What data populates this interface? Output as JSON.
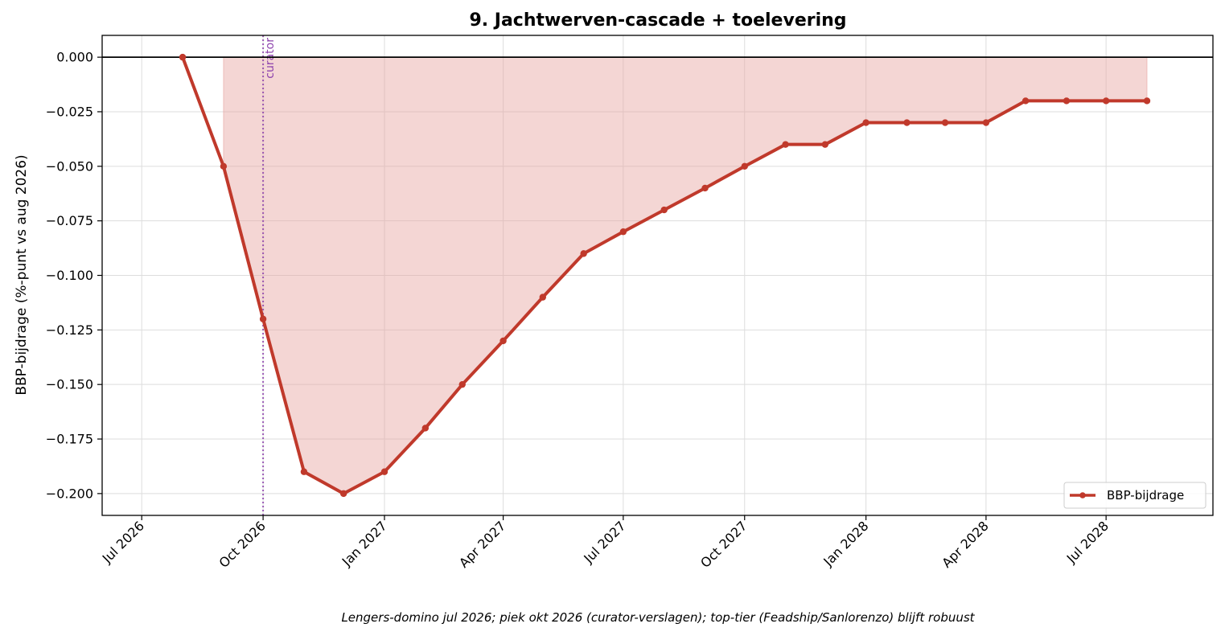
{
  "chart_data": {
    "type": "line",
    "title": "9. Jachtwerven-cascade + toelevering",
    "xlabel": "",
    "ylabel": "BBP-bijdrage (%-punt vs aug 2026)",
    "caption": "Lengers-domino jul 2026; piek okt 2026 (curator-verslagen); top-tier (Feadship/Sanlorenzo) blijft robuust",
    "x_tick_labels": [
      "Jul 2026",
      "Oct 2026",
      "Jan 2027",
      "Apr 2027",
      "Jul 2027",
      "Oct 2027",
      "Jan 2028",
      "Apr 2028",
      "Jul 2028"
    ],
    "x_ticks": [
      "2026-07-01",
      "2026-10-01",
      "2027-01-01",
      "2027-04-01",
      "2027-07-01",
      "2027-10-01",
      "2028-01-01",
      "2028-04-01",
      "2028-07-01"
    ],
    "xlim": [
      "2026-06-01",
      "2028-09-20"
    ],
    "y_ticks": [
      0.0,
      -0.025,
      -0.05,
      -0.075,
      -0.1,
      -0.125,
      -0.15,
      -0.175,
      -0.2
    ],
    "y_tick_labels": [
      "0.000",
      "−0.025",
      "−0.050",
      "−0.075",
      "−0.100",
      "−0.125",
      "−0.150",
      "−0.175",
      "−0.200"
    ],
    "ylim": [
      -0.21,
      0.01
    ],
    "grid": true,
    "legend_position": "lower-right",
    "zero_line": true,
    "series": [
      {
        "name": "BBP-bijdrage",
        "color": "#c0392b",
        "fill_color": "#e6a3a0",
        "x": [
          "2026-08-01",
          "2026-09-01",
          "2026-10-01",
          "2026-11-01",
          "2026-12-01",
          "2027-01-01",
          "2027-02-01",
          "2027-03-01",
          "2027-04-01",
          "2027-05-01",
          "2027-06-01",
          "2027-07-01",
          "2027-08-01",
          "2027-09-01",
          "2027-10-01",
          "2027-11-01",
          "2027-12-01",
          "2028-01-01",
          "2028-02-01",
          "2028-03-01",
          "2028-04-01",
          "2028-05-01",
          "2028-06-01",
          "2028-07-01",
          "2028-08-01"
        ],
        "values": [
          0.0,
          -0.05,
          -0.12,
          -0.19,
          -0.2,
          -0.19,
          -0.17,
          -0.15,
          -0.13,
          -0.11,
          -0.09,
          -0.08,
          -0.07,
          -0.06,
          -0.05,
          -0.04,
          -0.04,
          -0.03,
          -0.03,
          -0.03,
          -0.03,
          -0.02,
          -0.02,
          -0.02,
          -0.02
        ]
      }
    ],
    "annotations": [
      {
        "x": "2026-10-01",
        "label": "curator",
        "color": "#8e44ad",
        "style": "dotted-vertical-line"
      }
    ]
  }
}
